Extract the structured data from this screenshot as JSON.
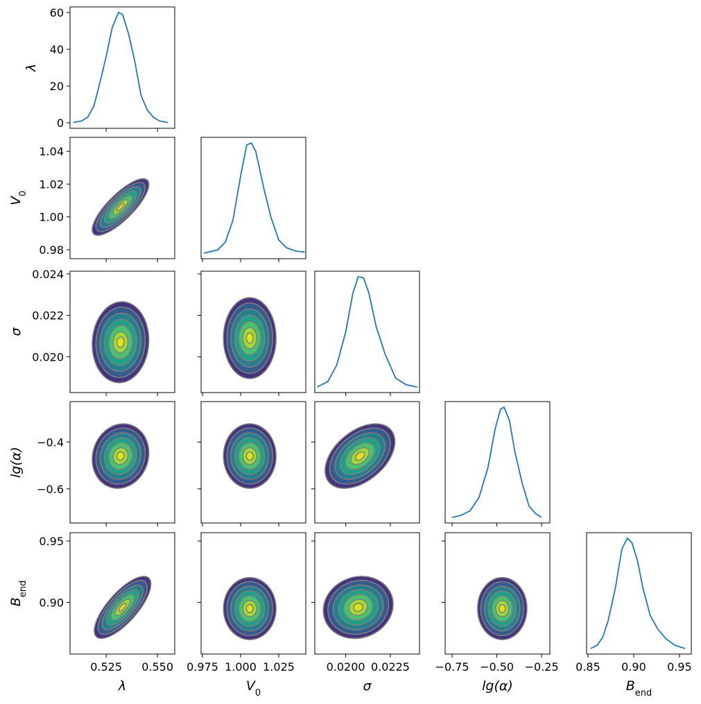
{
  "chart_data": {
    "type": "corner",
    "params": [
      {
        "label": "λ",
        "xlim": [
          0.5074,
          0.5584
        ],
        "xticks": [
          0.525,
          {
            "value": 0.55,
            "label": "0.550"
          }
        ]
      },
      {
        "label": "V",
        "label_sub": "0",
        "xlim": [
          0.9741,
          1.0427
        ],
        "xticks": [
          0.975,
          {
            "value": 1.0,
            "label": "1.000"
          },
          1.025
        ],
        "ylim": [
          0.9745,
          1.0485
        ],
        "yticks": [
          0.98,
          {
            "value": 1.0,
            "label": "1.00"
          },
          1.02,
          1.04
        ]
      },
      {
        "label": "σ",
        "xlim": [
          0.01827,
          0.02413
        ],
        "xticks": [
          {
            "value": 0.02,
            "label": "0.0200"
          },
          0.0225
        ],
        "ylim": [
          0.01827,
          0.02413
        ],
        "yticks": [
          {
            "value": 0.02,
            "label": "0.020"
          },
          0.022,
          0.024
        ]
      },
      {
        "label": "lg(α)",
        "xlim": [
          -0.789,
          -0.204
        ],
        "xticks": [
          {
            "value": -0.75,
            "label": "−0.75"
          },
          {
            "value": -0.5,
            "label": "−0.50"
          },
          {
            "value": -0.25,
            "label": "−0.25"
          }
        ],
        "ylim": [
          -0.746,
          -0.227
        ],
        "yticks": [
          {
            "value": -0.6,
            "label": "−0.6"
          },
          {
            "value": -0.4,
            "label": "−0.4"
          }
        ]
      },
      {
        "label": "B",
        "label_sub": "end",
        "xlim": [
          0.8485,
          0.9629
        ],
        "xticks": [
          0.85,
          {
            "value": 0.9,
            "label": "0.90"
          },
          0.95
        ],
        "ylim": [
          0.858,
          0.9568
        ],
        "yticks": [
          {
            "value": 0.9,
            "label": "0.90"
          },
          0.95
        ]
      }
    ],
    "line_color": "#1f77b4",
    "diagonal": [
      {
        "x": [
          0.509,
          0.513,
          0.516,
          0.519,
          0.522,
          0.525,
          0.528,
          0.531,
          0.533,
          0.536,
          0.539,
          0.542,
          0.545,
          0.548,
          0.551,
          0.555
        ],
        "values": [
          0.2,
          1,
          3,
          9,
          22,
          36,
          52,
          60,
          59,
          48,
          33,
          15,
          7,
          3,
          1,
          0.2
        ],
        "ylim": [
          -3,
          63
        ],
        "yticks": [
          0,
          20,
          40,
          60
        ]
      },
      {
        "x": [
          0.976,
          0.985,
          0.99,
          0.995,
          1.0,
          1.004,
          1.007,
          1.01,
          1.015,
          1.02,
          1.025,
          1.03,
          1.036,
          1.042
        ],
        "values": [
          0,
          0.03,
          0.1,
          0.3,
          0.7,
          0.98,
          1,
          0.92,
          0.6,
          0.32,
          0.12,
          0.05,
          0.02,
          0.01
        ],
        "ylim": [
          -0.05,
          1.05
        ]
      },
      {
        "x": [
          0.0184,
          0.019,
          0.0195,
          0.02,
          0.0204,
          0.0207,
          0.021,
          0.0213,
          0.0217,
          0.0222,
          0.0228,
          0.0234,
          0.024
        ],
        "values": [
          0,
          0.05,
          0.2,
          0.5,
          0.85,
          1,
          0.99,
          0.85,
          0.55,
          0.3,
          0.08,
          0.02,
          0
        ],
        "ylim": [
          -0.05,
          1.05
        ]
      },
      {
        "x": [
          -0.75,
          -0.7,
          -0.65,
          -0.6,
          -0.55,
          -0.51,
          -0.48,
          -0.46,
          -0.43,
          -0.4,
          -0.36,
          -0.32,
          -0.28,
          -0.25
        ],
        "values": [
          0,
          0.02,
          0.06,
          0.18,
          0.45,
          0.8,
          0.98,
          1,
          0.88,
          0.6,
          0.32,
          0.1,
          0.03,
          0
        ],
        "ylim": [
          -0.05,
          1.05
        ]
      },
      {
        "x": [
          0.853,
          0.86,
          0.866,
          0.872,
          0.88,
          0.887,
          0.893,
          0.898,
          0.904,
          0.91,
          0.918,
          0.926,
          0.935,
          0.945,
          0.956
        ],
        "values": [
          0,
          0.03,
          0.1,
          0.25,
          0.55,
          0.9,
          1,
          0.96,
          0.8,
          0.55,
          0.3,
          0.18,
          0.09,
          0.03,
          0
        ],
        "ylim": [
          -0.05,
          1.05
        ]
      }
    ],
    "contour_colors": [
      "#46337e",
      "#365c8d",
      "#277f8e",
      "#1fa187",
      "#4ac16d",
      "#a0da39",
      "#dde318"
    ],
    "pairs": [
      {
        "x_param": 0,
        "y_param": 1,
        "center": [
          0.532,
          1.006
        ],
        "sigma": [
          0.006,
          0.0075
        ],
        "rho": 0.8
      },
      {
        "x_param": 0,
        "y_param": 2,
        "center": [
          0.532,
          0.0207
        ],
        "sigma": [
          0.006,
          0.00085
        ],
        "rho": 0.05
      },
      {
        "x_param": 1,
        "y_param": 2,
        "center": [
          1.006,
          0.0209
        ],
        "sigma": [
          0.0075,
          0.00085
        ],
        "rho": 0
      },
      {
        "x_param": 0,
        "y_param": 3,
        "center": [
          0.532,
          -0.46
        ],
        "sigma": [
          0.006,
          0.06
        ],
        "rho": 0.1
      },
      {
        "x_param": 1,
        "y_param": 3,
        "center": [
          1.006,
          -0.46
        ],
        "sigma": [
          0.0075,
          0.06
        ],
        "rho": 0
      },
      {
        "x_param": 2,
        "y_param": 3,
        "center": [
          0.0208,
          -0.46
        ],
        "sigma": [
          0.00085,
          0.06
        ],
        "rho": 0.45
      },
      {
        "x_param": 0,
        "y_param": 4,
        "center": [
          0.533,
          0.896
        ],
        "sigma": [
          0.006,
          0.011
        ],
        "rho": 0.75
      },
      {
        "x_param": 1,
        "y_param": 4,
        "center": [
          1.006,
          0.895
        ],
        "sigma": [
          0.0075,
          0.011
        ],
        "rho": 0
      },
      {
        "x_param": 2,
        "y_param": 4,
        "center": [
          0.0207,
          0.896
        ],
        "sigma": [
          0.00085,
          0.011
        ],
        "rho": 0.1
      },
      {
        "x_param": 3,
        "y_param": 4,
        "center": [
          -0.47,
          0.895
        ],
        "sigma": [
          0.06,
          0.011
        ],
        "rho": 0
      }
    ]
  }
}
